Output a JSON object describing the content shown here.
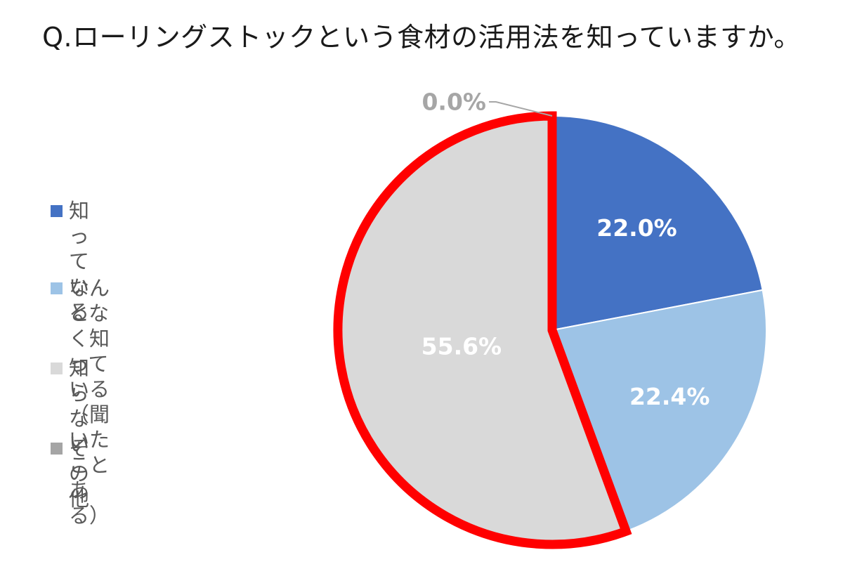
{
  "chart_data": {
    "type": "pie",
    "title": "Q.ローリングストックという食材の活用法を知っていますか。",
    "start_angle_deg": 0,
    "direction": "clockwise",
    "legend_position": "left",
    "series": [
      {
        "name": "知っている",
        "value": 22.0,
        "label": "22.0%",
        "color": "#4472C4",
        "label_color": "#FFFFFF"
      },
      {
        "name": "なんとなく知っている\n（聞いたことある）",
        "value": 22.4,
        "label": "22.4%",
        "color": "#9DC3E6",
        "label_color": "#FFFFFF"
      },
      {
        "name": "知らない",
        "value": 55.6,
        "label": "55.6%",
        "color": "#D9D9D9",
        "label_color": "#FFFFFF",
        "highlighted": true,
        "highlight_color": "#FF0000"
      },
      {
        "name": "その他",
        "value": 0.0,
        "label": "0.0%",
        "color": "#A5A5A5",
        "label_color": "#A6A6A6"
      }
    ]
  }
}
